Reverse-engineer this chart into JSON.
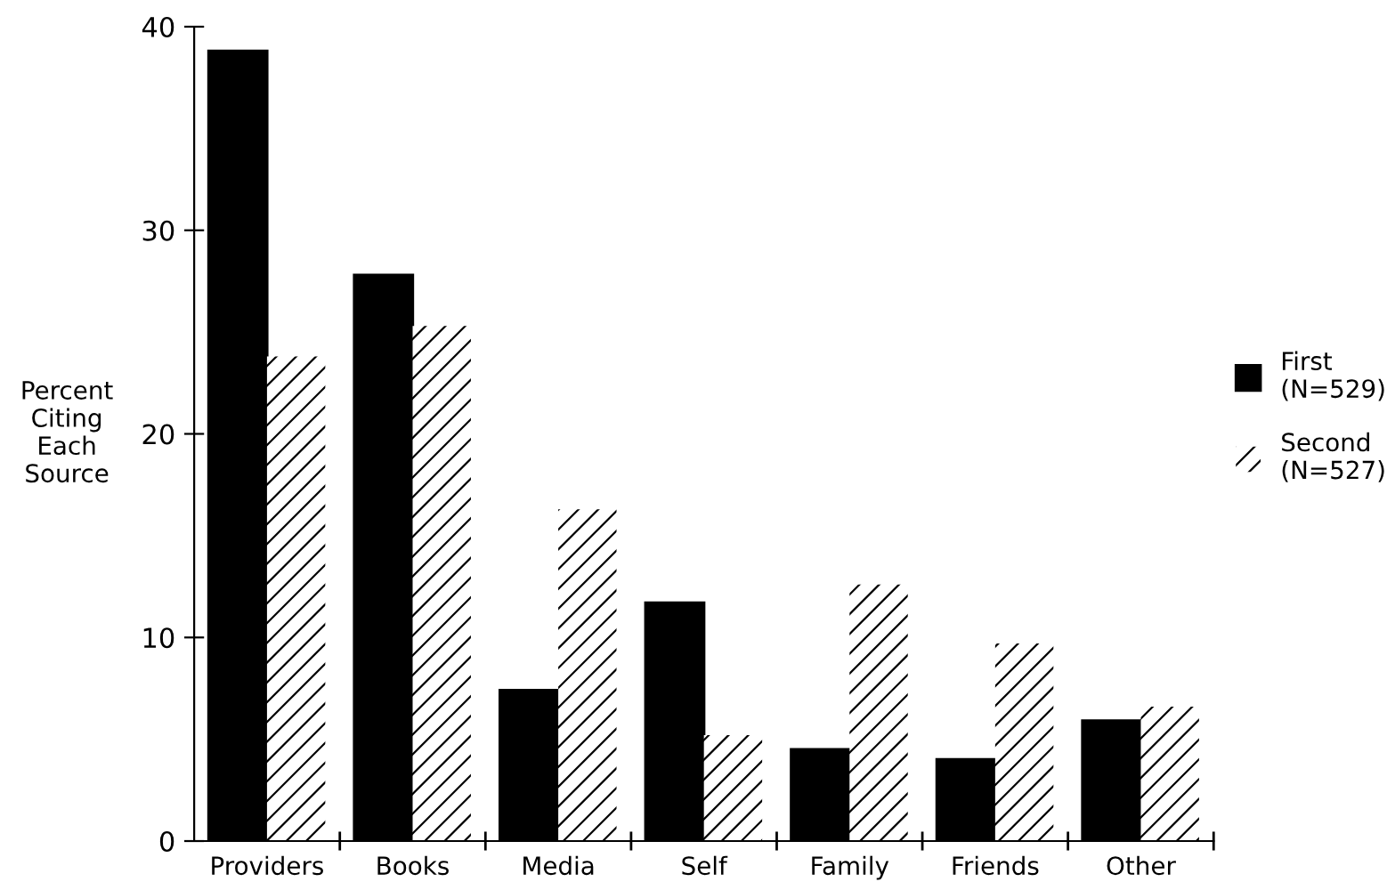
{
  "chart_data": {
    "type": "bar",
    "ylabel": "Percent\nCiting\nEach\nSource",
    "categories": [
      "Providers",
      "Books",
      "Media",
      "Self",
      "Family",
      "Friends",
      "Other"
    ],
    "series": [
      {
        "name": "First\n(N=529)",
        "color": "#000000",
        "values": [
          38.8,
          27.8,
          7.4,
          11.7,
          4.5,
          4.0,
          5.9
        ]
      },
      {
        "name": "Second\n(N=527)",
        "color": "#ffffff",
        "values": [
          23.8,
          25.3,
          16.3,
          5.2,
          12.6,
          9.7,
          6.6
        ]
      }
    ],
    "ylim": [
      0,
      40
    ],
    "yticks": [
      0,
      10,
      20,
      30,
      40
    ],
    "grid": false,
    "legend": "right"
  }
}
